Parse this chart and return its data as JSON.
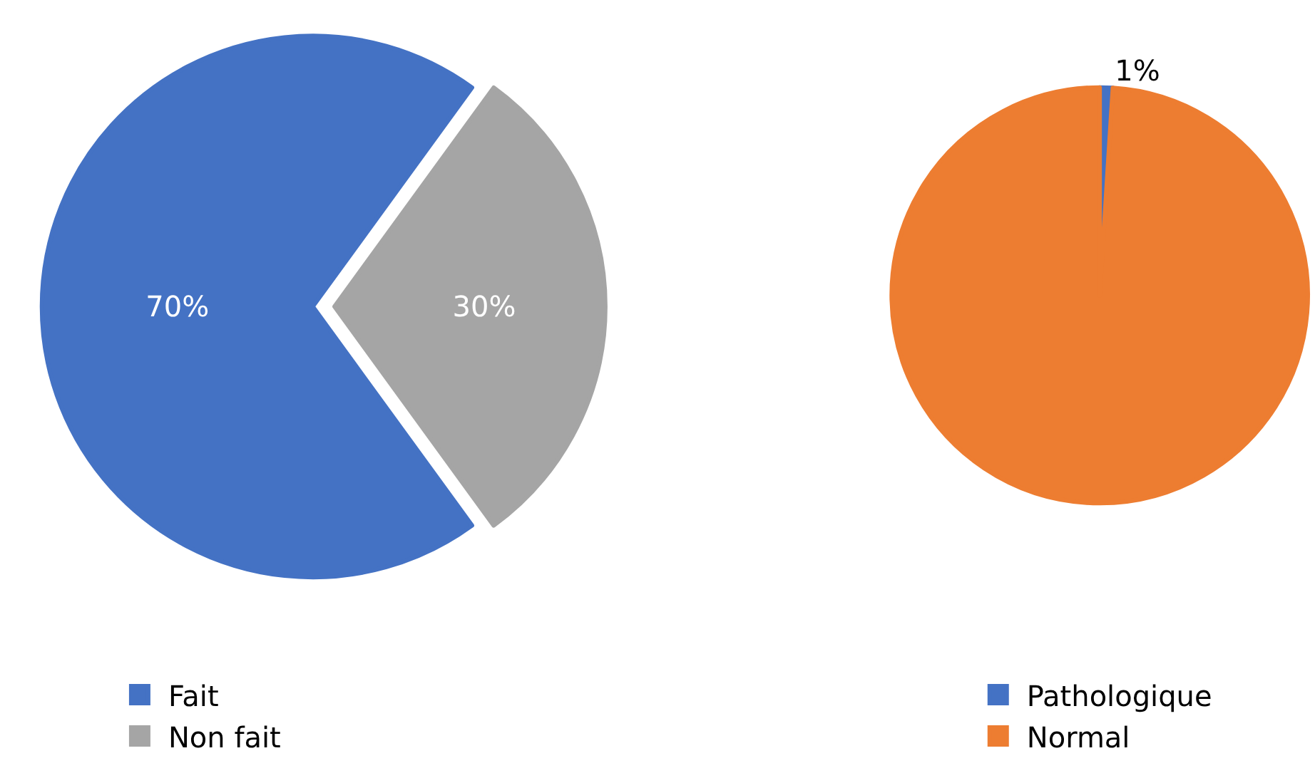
{
  "chart_data": [
    {
      "type": "pie",
      "categories": [
        "Fait",
        "Non fait"
      ],
      "values": [
        70,
        30
      ],
      "colors": [
        "#4472c4",
        "#a5a5a5"
      ],
      "value_labels": [
        "70%",
        "30%"
      ],
      "legend": "bottom left"
    },
    {
      "type": "pie",
      "categories": [
        "Pathologique",
        "Normal"
      ],
      "values": [
        1,
        99
      ],
      "colors": [
        "#4472c4",
        "#ed7d31"
      ],
      "value_labels": [
        "1%",
        null
      ],
      "legend": "bottom right"
    }
  ]
}
